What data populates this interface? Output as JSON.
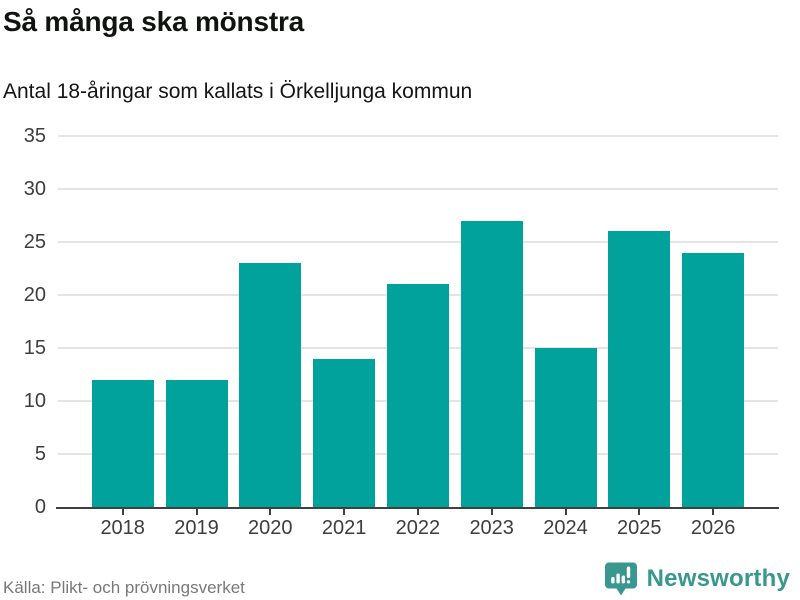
{
  "header": {
    "title": "Så många ska mönstra",
    "subtitle": "Antal 18-åringar som kallats i Örkelljunga kommun"
  },
  "chart_data": {
    "type": "bar",
    "categories": [
      "2018",
      "2019",
      "2020",
      "2021",
      "2022",
      "2023",
      "2024",
      "2025",
      "2026"
    ],
    "values": [
      12,
      12,
      23,
      14,
      21,
      27,
      15,
      26,
      24
    ],
    "title": "Så många ska mönstra",
    "subtitle": "Antal 18-åringar som kallats i Örkelljunga kommun",
    "xlabel": "",
    "ylabel": "",
    "ylim": [
      0,
      35
    ],
    "yticks": [
      0,
      5,
      10,
      15,
      20,
      25,
      30,
      35
    ],
    "grid": "horizontal",
    "legend": "none",
    "bar_color": "#00a29b",
    "gridline_color": "#e4e4e4",
    "axis_color": "#404040"
  },
  "footer": {
    "source": "Källa: Plikt- och prövningsverket",
    "brand": "Newsworthy",
    "brand_color": "#38978f",
    "brand_icon": "bar-chart-speech-bubble"
  }
}
